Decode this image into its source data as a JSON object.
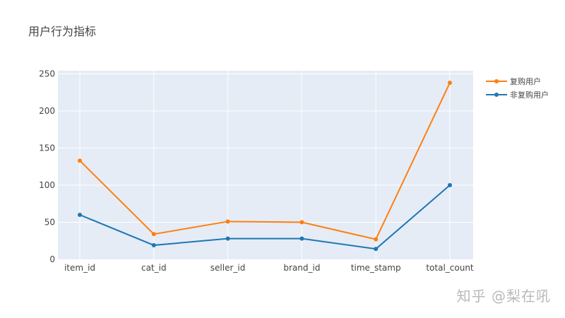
{
  "chart_data": {
    "type": "line",
    "title": "用户行为指标",
    "categories": [
      "item_id",
      "cat_id",
      "seller_id",
      "brand_id",
      "time_stamp",
      "total_count"
    ],
    "ylim": [
      0,
      250
    ],
    "yticks": [
      0,
      50,
      100,
      150,
      200,
      250
    ],
    "grid": true,
    "legend_position": "top-right",
    "series": [
      {
        "name": "复购用户",
        "color": "#ff7f0e",
        "values": [
          133,
          34,
          51,
          50,
          27,
          238
        ]
      },
      {
        "name": "非复购用户",
        "color": "#1f77b4",
        "values": [
          60,
          19,
          28,
          28,
          14,
          100
        ]
      }
    ]
  },
  "watermark": "知乎 @梨在吼"
}
